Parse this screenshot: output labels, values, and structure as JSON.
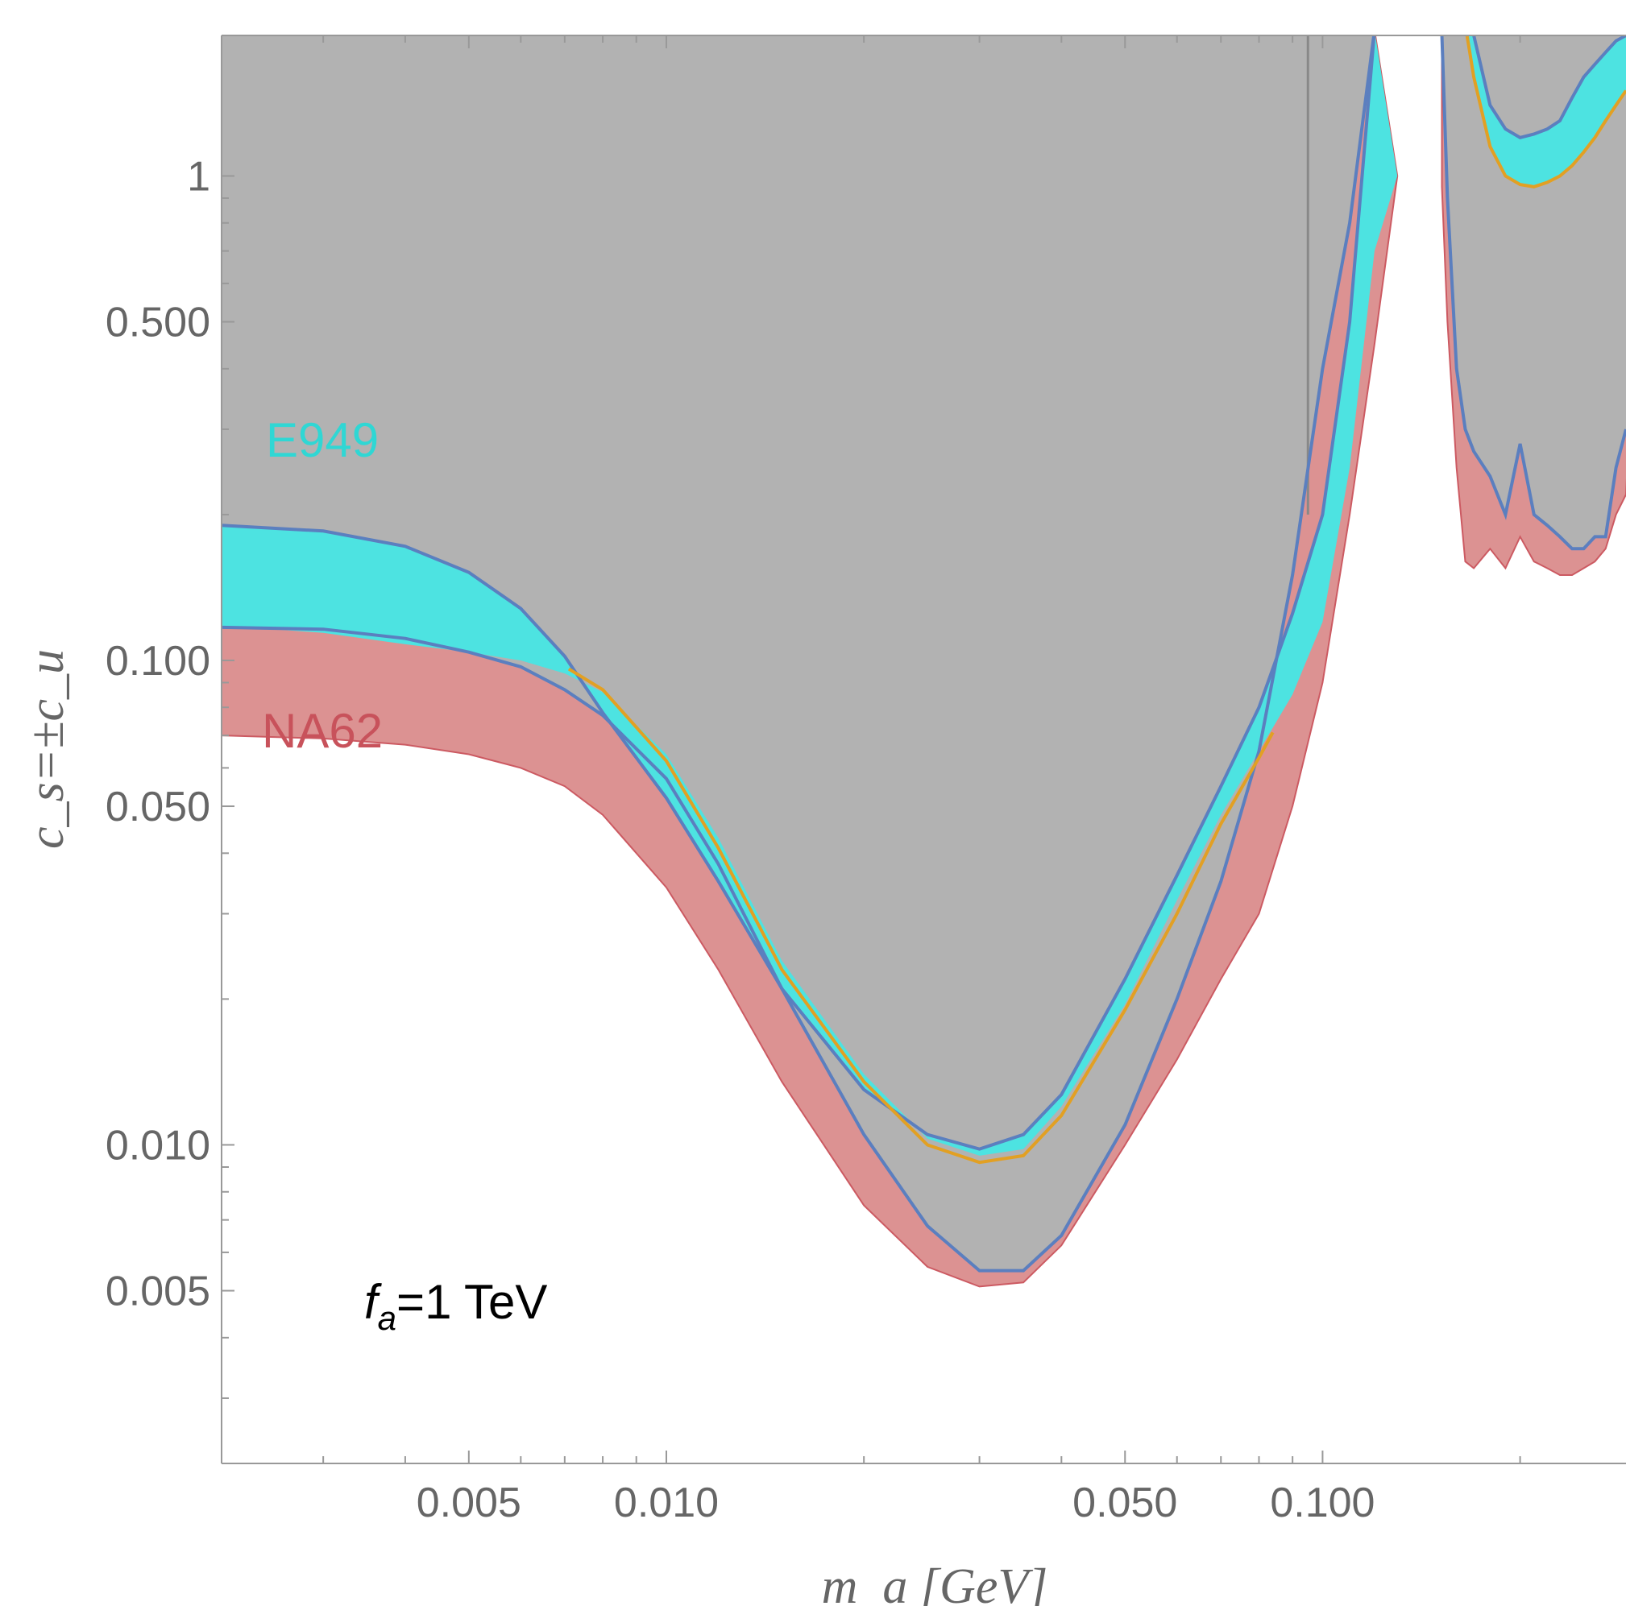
{
  "chart_data": {
    "type": "area",
    "title": "",
    "xlabel": "m_a [GeV]",
    "ylabel": "c_s=±c_u",
    "x_scale": "log",
    "y_scale": "log",
    "xlim": [
      0.0021,
      0.29
    ],
    "ylim": [
      0.0022,
      1.95
    ],
    "x_ticks": [
      0.005,
      0.01,
      0.05,
      0.1
    ],
    "x_tick_labels": [
      "0.005",
      "0.010",
      "0.050",
      "0.100"
    ],
    "y_ticks": [
      1,
      0.5,
      0.1,
      0.05,
      0.01,
      0.005
    ],
    "y_tick_labels": [
      "1",
      "0.500",
      "0.100",
      "0.050",
      "0.010",
      "0.005"
    ],
    "annotation": {
      "prefix": "f",
      "subscript": "a",
      "text": "=1 TeV"
    },
    "colors": {
      "gray_fill": "#b2b2b2",
      "e949_fill": "#4de3e1",
      "na62_fill": "#dc9292",
      "na62_edge": "#cc5a62",
      "overlap_fill": "#a69394",
      "boundary_line": "#5b7fbf",
      "orange_line": "#e2a023",
      "vertical_line": "#888888",
      "e949_label": "#2fd7d4",
      "na62_label": "#c8525b"
    },
    "series": [
      {
        "name": "E949",
        "upper": [
          [
            0.0021,
            0.19
          ],
          [
            0.003,
            0.185
          ],
          [
            0.004,
            0.172
          ],
          [
            0.005,
            0.152
          ],
          [
            0.006,
            0.128
          ],
          [
            0.007,
            0.102
          ],
          [
            0.008,
            0.078
          ],
          [
            0.01,
            0.052
          ],
          [
            0.012,
            0.035
          ],
          [
            0.015,
            0.021
          ],
          [
            0.02,
            0.013
          ],
          [
            0.025,
            0.0105
          ],
          [
            0.03,
            0.0098
          ],
          [
            0.035,
            0.0105
          ],
          [
            0.04,
            0.0127
          ],
          [
            0.05,
            0.022
          ],
          [
            0.06,
            0.036
          ],
          [
            0.07,
            0.055
          ],
          [
            0.08,
            0.08
          ],
          [
            0.09,
            0.125
          ],
          [
            0.1,
            0.2
          ],
          [
            0.11,
            0.5
          ],
          [
            0.12,
            2.0
          ]
        ],
        "lower": [
          [
            0.0021,
            0.118
          ],
          [
            0.003,
            0.114
          ],
          [
            0.004,
            0.108
          ],
          [
            0.005,
            0.104
          ],
          [
            0.006,
            0.1
          ],
          [
            0.007,
            0.094
          ],
          [
            0.008,
            0.086
          ],
          [
            0.01,
            0.064
          ],
          [
            0.012,
            0.043
          ],
          [
            0.015,
            0.024
          ],
          [
            0.02,
            0.014
          ],
          [
            0.025,
            0.0103
          ],
          [
            0.03,
            0.0095
          ],
          [
            0.035,
            0.0098
          ],
          [
            0.04,
            0.012
          ],
          [
            0.05,
            0.0195
          ],
          [
            0.06,
            0.032
          ],
          [
            0.07,
            0.048
          ],
          [
            0.08,
            0.065
          ],
          [
            0.09,
            0.085
          ],
          [
            0.1,
            0.12
          ],
          [
            0.11,
            0.25
          ],
          [
            0.12,
            0.7
          ],
          [
            0.13,
            1.0
          ]
        ]
      },
      {
        "name": "NA62",
        "upper": [
          [
            0.0021,
            0.117
          ],
          [
            0.003,
            0.116
          ],
          [
            0.004,
            0.111
          ],
          [
            0.005,
            0.104
          ],
          [
            0.006,
            0.097
          ],
          [
            0.007,
            0.087
          ],
          [
            0.008,
            0.077
          ],
          [
            0.01,
            0.057
          ],
          [
            0.012,
            0.038
          ],
          [
            0.015,
            0.021
          ],
          [
            0.02,
            0.0105
          ],
          [
            0.025,
            0.0068
          ],
          [
            0.03,
            0.0055
          ],
          [
            0.035,
            0.0055
          ],
          [
            0.04,
            0.0065
          ],
          [
            0.05,
            0.011
          ],
          [
            0.06,
            0.02
          ],
          [
            0.07,
            0.035
          ],
          [
            0.08,
            0.065
          ],
          [
            0.09,
            0.15
          ],
          [
            0.1,
            0.4
          ],
          [
            0.11,
            0.8
          ],
          [
            0.12,
            2.0
          ]
        ],
        "lower": [
          [
            0.0021,
            0.07
          ],
          [
            0.003,
            0.069
          ],
          [
            0.004,
            0.067
          ],
          [
            0.005,
            0.064
          ],
          [
            0.006,
            0.06
          ],
          [
            0.007,
            0.055
          ],
          [
            0.008,
            0.048
          ],
          [
            0.01,
            0.034
          ],
          [
            0.012,
            0.023
          ],
          [
            0.015,
            0.0135
          ],
          [
            0.02,
            0.0075
          ],
          [
            0.025,
            0.0056
          ],
          [
            0.03,
            0.0051
          ],
          [
            0.035,
            0.0052
          ],
          [
            0.04,
            0.0062
          ],
          [
            0.05,
            0.01
          ],
          [
            0.06,
            0.015
          ],
          [
            0.07,
            0.022
          ],
          [
            0.08,
            0.03
          ],
          [
            0.09,
            0.05
          ],
          [
            0.1,
            0.09
          ],
          [
            0.11,
            0.2
          ],
          [
            0.12,
            0.45
          ],
          [
            0.13,
            1.0
          ]
        ]
      },
      {
        "name": "",
        "points": [
          [
            0.0071,
            0.096
          ],
          [
            0.008,
            0.087
          ],
          [
            0.01,
            0.062
          ],
          [
            0.012,
            0.041
          ],
          [
            0.015,
            0.023
          ],
          [
            0.02,
            0.0135
          ],
          [
            0.025,
            0.01
          ],
          [
            0.03,
            0.0092
          ],
          [
            0.035,
            0.0095
          ],
          [
            0.04,
            0.0115
          ],
          [
            0.05,
            0.019
          ],
          [
            0.06,
            0.03
          ],
          [
            0.07,
            0.046
          ],
          [
            0.08,
            0.063
          ],
          [
            0.084,
            0.071
          ]
        ]
      }
    ],
    "right_region": {
      "x_start": 0.152,
      "gray_lower": [
        [
          0.152,
          1.95
        ],
        [
          0.155,
          0.9
        ],
        [
          0.16,
          0.4
        ],
        [
          0.165,
          0.3
        ],
        [
          0.17,
          0.27
        ],
        [
          0.18,
          0.24
        ],
        [
          0.19,
          0.2
        ],
        [
          0.2,
          0.28
        ],
        [
          0.21,
          0.2
        ],
        [
          0.22,
          0.19
        ],
        [
          0.23,
          0.18
        ],
        [
          0.24,
          0.17
        ],
        [
          0.25,
          0.17
        ],
        [
          0.26,
          0.18
        ],
        [
          0.27,
          0.18
        ],
        [
          0.28,
          0.25
        ],
        [
          0.29,
          0.3
        ]
      ],
      "red_lower": [
        [
          0.152,
          0.95
        ],
        [
          0.155,
          0.5
        ],
        [
          0.16,
          0.25
        ],
        [
          0.165,
          0.16
        ],
        [
          0.17,
          0.155
        ],
        [
          0.18,
          0.17
        ],
        [
          0.19,
          0.155
        ],
        [
          0.2,
          0.18
        ],
        [
          0.21,
          0.16
        ],
        [
          0.22,
          0.155
        ],
        [
          0.23,
          0.15
        ],
        [
          0.24,
          0.15
        ],
        [
          0.25,
          0.155
        ],
        [
          0.26,
          0.16
        ],
        [
          0.27,
          0.17
        ],
        [
          0.28,
          0.2
        ],
        [
          0.29,
          0.22
        ]
      ],
      "cyan_upper": [
        [
          0.17,
          1.95
        ],
        [
          0.18,
          1.4
        ],
        [
          0.19,
          1.25
        ],
        [
          0.2,
          1.2
        ],
        [
          0.21,
          1.22
        ],
        [
          0.22,
          1.25
        ],
        [
          0.23,
          1.3
        ],
        [
          0.24,
          1.45
        ],
        [
          0.25,
          1.6
        ],
        [
          0.26,
          1.7
        ],
        [
          0.27,
          1.8
        ],
        [
          0.28,
          1.9
        ],
        [
          0.29,
          1.95
        ]
      ],
      "orange": [
        [
          0.166,
          1.95
        ],
        [
          0.17,
          1.6
        ],
        [
          0.18,
          1.15
        ],
        [
          0.19,
          1.0
        ],
        [
          0.2,
          0.96
        ],
        [
          0.21,
          0.95
        ],
        [
          0.22,
          0.97
        ],
        [
          0.23,
          1.0
        ],
        [
          0.24,
          1.05
        ],
        [
          0.25,
          1.12
        ],
        [
          0.26,
          1.2
        ],
        [
          0.27,
          1.3
        ],
        [
          0.28,
          1.4
        ],
        [
          0.29,
          1.5
        ]
      ]
    },
    "vertical_line_x": 0.095,
    "grid": false,
    "legend": "none"
  }
}
